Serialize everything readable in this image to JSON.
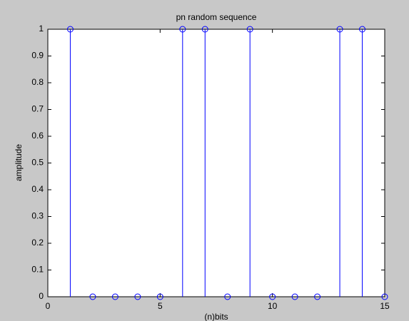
{
  "chart_data": {
    "type": "stem",
    "title": "pn random sequence",
    "x_label": "(n)bits",
    "y_label": "amplitude",
    "x": [
      1,
      2,
      3,
      4,
      5,
      6,
      7,
      8,
      9,
      10,
      11,
      12,
      13,
      14,
      15
    ],
    "values": [
      1,
      0,
      0,
      0,
      0,
      1,
      1,
      0,
      1,
      0,
      0,
      0,
      1,
      1,
      0
    ],
    "color": "#0000ff",
    "xlim": [
      0,
      15
    ],
    "xticks": [
      0,
      5,
      10,
      15
    ],
    "ylim": [
      0,
      1
    ],
    "yticks": [
      0,
      0.1,
      0.2,
      0.3,
      0.4,
      0.5,
      0.6,
      0.7,
      0.8,
      0.9,
      1
    ],
    "grid": false
  }
}
